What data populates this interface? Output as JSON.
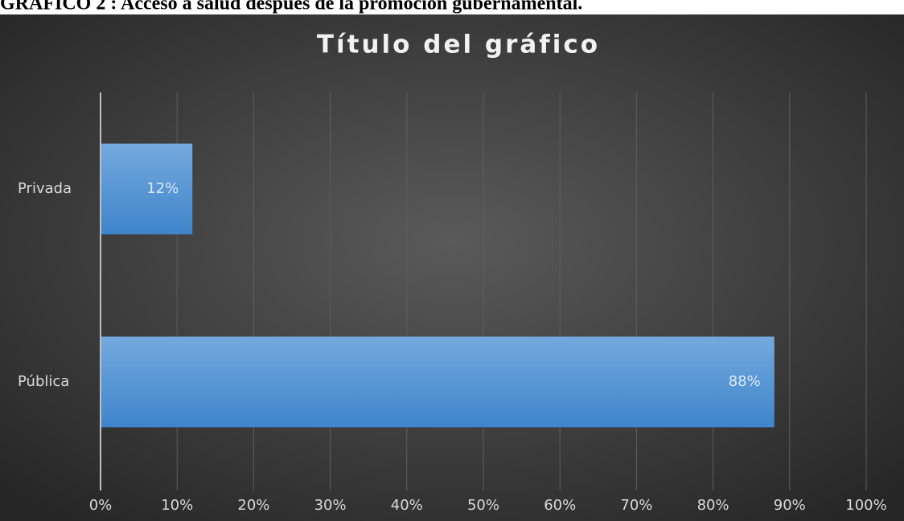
{
  "caption": "GRÁFICO 2 : Acceso a salud después de la promoción gubernamental.",
  "chart_data": {
    "type": "bar",
    "orientation": "horizontal",
    "title": "Título del gráfico",
    "categories": [
      "Privada",
      "Pública"
    ],
    "values": [
      12,
      88
    ],
    "value_labels": [
      "12%",
      "88%"
    ],
    "color": "#4f93d6",
    "xlim": [
      0,
      100
    ],
    "xticks": [
      {
        "value": 0,
        "label": "0%"
      },
      {
        "value": 10,
        "label": "10%"
      },
      {
        "value": 20,
        "label": "20%"
      },
      {
        "value": 30,
        "label": "30%"
      },
      {
        "value": 40,
        "label": "40%"
      },
      {
        "value": 50,
        "label": "50%"
      },
      {
        "value": 60,
        "label": "60%"
      },
      {
        "value": 70,
        "label": "70%"
      },
      {
        "value": 80,
        "label": "80%"
      },
      {
        "value": 90,
        "label": "90%"
      },
      {
        "value": 100,
        "label": "100%"
      }
    ],
    "grid": true
  }
}
